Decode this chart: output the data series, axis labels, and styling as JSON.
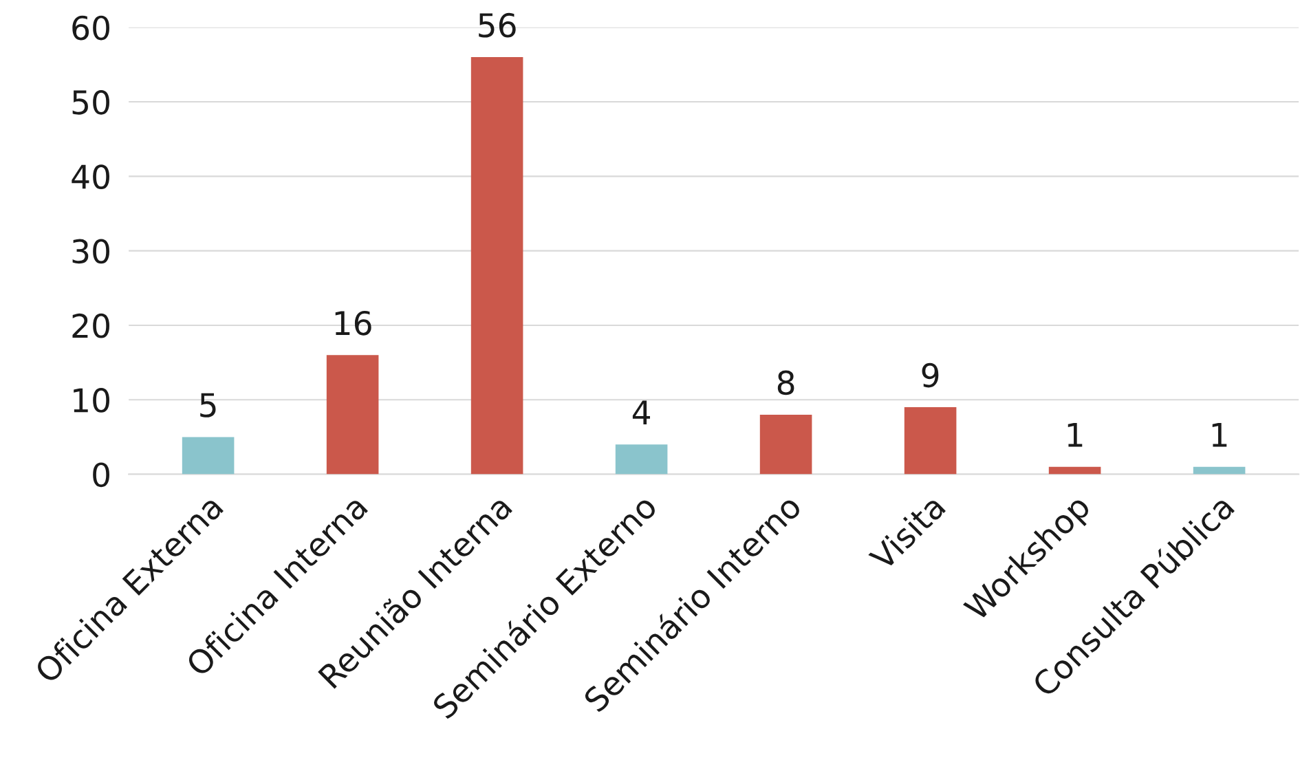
{
  "chart_data": {
    "type": "bar",
    "categories": [
      "Oficina Externa",
      "Oficina Interna",
      "Reunião Interna",
      "Seminário Externo",
      "Seminário Interno",
      "Visita",
      "Workshop",
      "Consulta Pública"
    ],
    "values": [
      5,
      16,
      56,
      4,
      8,
      9,
      1,
      1
    ],
    "colors": [
      "#8ac4cc",
      "#cb584b",
      "#cb584b",
      "#8ac4cc",
      "#cb584b",
      "#cb584b",
      "#cb584b",
      "#8ac4cc"
    ],
    "ylim": [
      0,
      60
    ],
    "yticks": [
      0,
      10,
      20,
      30,
      40,
      50,
      60
    ],
    "grid": "y",
    "data_labels": true
  }
}
